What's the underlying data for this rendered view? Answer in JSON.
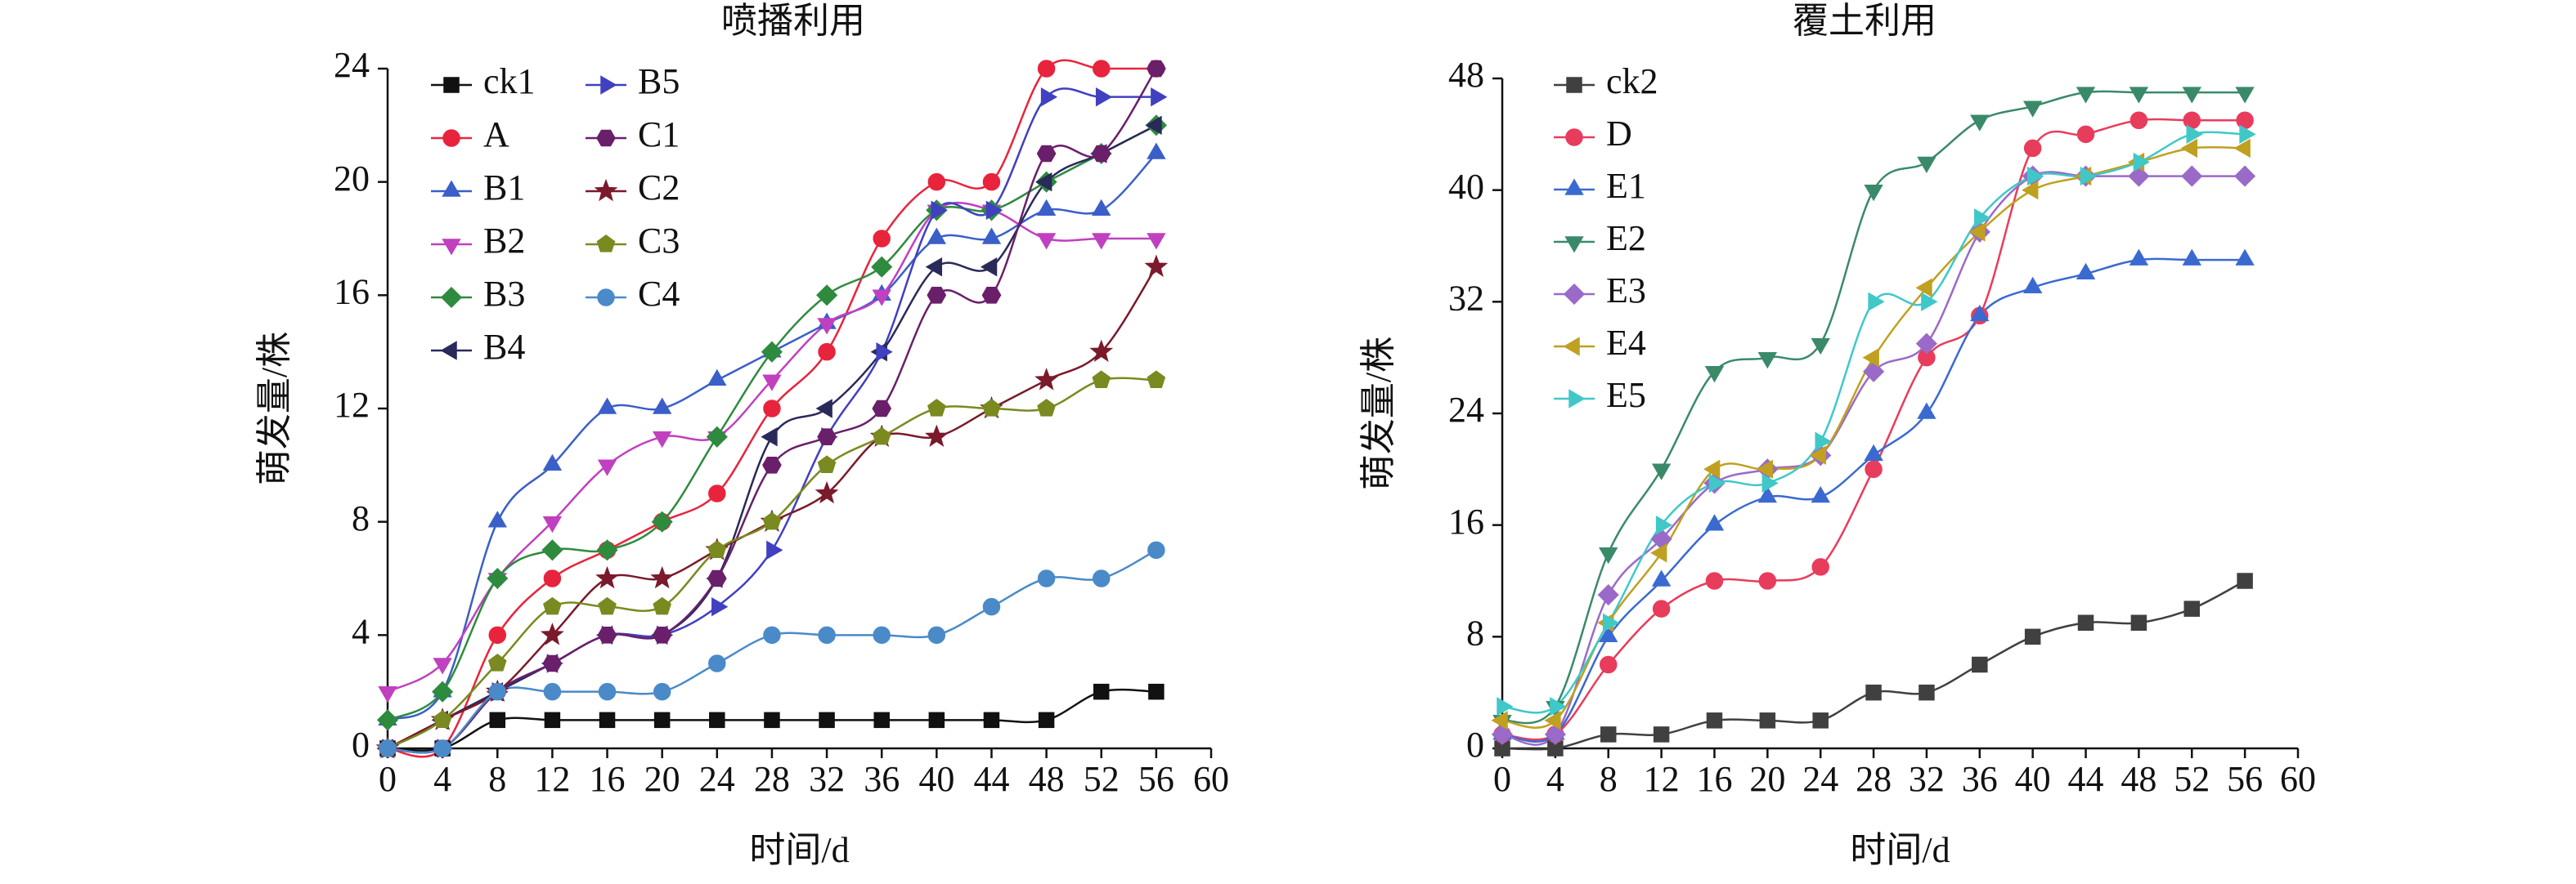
{
  "chart_data": [
    {
      "type": "line",
      "title": "喷播利用",
      "xlabel": "时间/d",
      "ylabel": "萌发量/株",
      "x": [
        0,
        4,
        8,
        12,
        16,
        20,
        24,
        28,
        32,
        36,
        40,
        44,
        48,
        52,
        56
      ],
      "xlim": [
        0,
        60
      ],
      "xticks": [
        0,
        4,
        8,
        12,
        16,
        20,
        24,
        28,
        32,
        36,
        40,
        44,
        48,
        52,
        56,
        60
      ],
      "ylim": [
        0,
        24
      ],
      "yticks": [
        0,
        4,
        8,
        12,
        16,
        20,
        24
      ],
      "legend": "upper left",
      "legend_columns": 2,
      "series": [
        {
          "name": "ck1",
          "color": "#111111",
          "marker": "square",
          "values": [
            0,
            0,
            1,
            1,
            1,
            1,
            1,
            1,
            1,
            1,
            1,
            1,
            1,
            2,
            2
          ]
        },
        {
          "name": "A",
          "color": "#e8243c",
          "marker": "circle",
          "values": [
            0,
            0,
            4,
            6,
            7,
            8,
            9,
            12,
            14,
            18,
            20,
            20,
            24,
            24,
            24
          ]
        },
        {
          "name": "B1",
          "color": "#3a5fc8",
          "marker": "triangle-up",
          "values": [
            1,
            2,
            8,
            10,
            12,
            12,
            13,
            14,
            15,
            16,
            18,
            18,
            19,
            19,
            21
          ]
        },
        {
          "name": "B2",
          "color": "#c040c0",
          "marker": "triangle-down",
          "values": [
            2,
            3,
            6,
            8,
            10,
            11,
            11,
            13,
            15,
            16,
            19,
            19,
            18,
            18,
            18
          ]
        },
        {
          "name": "B3",
          "color": "#2e8b3e",
          "marker": "diamond",
          "values": [
            1,
            2,
            6,
            7,
            7,
            8,
            11,
            14,
            16,
            17,
            19,
            19,
            20,
            21,
            22
          ]
        },
        {
          "name": "B4",
          "color": "#2a2a5a",
          "marker": "triangle-left",
          "values": [
            0,
            1,
            2,
            3,
            4,
            4,
            6,
            11,
            12,
            14,
            17,
            17,
            20,
            21,
            22
          ]
        },
        {
          "name": "B5",
          "color": "#4040c0",
          "marker": "triangle-right",
          "values": [
            0,
            0,
            2,
            3,
            4,
            4,
            5,
            7,
            11,
            14,
            19,
            19,
            23,
            23,
            23
          ]
        },
        {
          "name": "C1",
          "color": "#6a1f6a",
          "marker": "hexagon",
          "values": [
            0,
            0,
            2,
            3,
            4,
            4,
            6,
            10,
            11,
            12,
            16,
            16,
            21,
            21,
            24
          ]
        },
        {
          "name": "C2",
          "color": "#7a1a2a",
          "marker": "star",
          "values": [
            0,
            1,
            2,
            4,
            6,
            6,
            7,
            8,
            9,
            11,
            11,
            12,
            13,
            14,
            17
          ]
        },
        {
          "name": "C3",
          "color": "#7a8a20",
          "marker": "pentagon",
          "values": [
            0,
            1,
            3,
            5,
            5,
            5,
            7,
            8,
            10,
            11,
            12,
            12,
            12,
            13,
            13
          ]
        },
        {
          "name": "C4",
          "color": "#4a8ac8",
          "marker": "circle",
          "values": [
            0,
            0,
            2,
            2,
            2,
            2,
            3,
            4,
            4,
            4,
            4,
            5,
            6,
            6,
            7
          ]
        }
      ]
    },
    {
      "type": "line",
      "title": "覆土利用",
      "xlabel": "时间/d",
      "ylabel": "萌发量/株",
      "x": [
        0,
        4,
        8,
        12,
        16,
        20,
        24,
        28,
        32,
        36,
        40,
        44,
        48,
        52,
        56
      ],
      "xlim": [
        0,
        60
      ],
      "xticks": [
        0,
        4,
        8,
        12,
        16,
        20,
        24,
        28,
        32,
        36,
        40,
        44,
        48,
        52,
        56,
        60
      ],
      "ylim": [
        0,
        48
      ],
      "yticks": [
        0,
        8,
        16,
        24,
        32,
        40,
        48
      ],
      "legend": "upper left",
      "legend_columns": 1,
      "series": [
        {
          "name": "ck2",
          "color": "#404040",
          "marker": "square",
          "values": [
            0,
            0,
            1,
            1,
            2,
            2,
            2,
            4,
            4,
            6,
            8,
            9,
            9,
            10,
            12
          ]
        },
        {
          "name": "D",
          "color": "#e83c5c",
          "marker": "circle",
          "values": [
            1,
            1,
            6,
            10,
            12,
            12,
            13,
            20,
            28,
            31,
            43,
            44,
            45,
            45,
            45
          ]
        },
        {
          "name": "E1",
          "color": "#3a6ad0",
          "marker": "triangle-up",
          "values": [
            1,
            1,
            8,
            12,
            16,
            18,
            18,
            21,
            24,
            31,
            33,
            34,
            35,
            35,
            35
          ]
        },
        {
          "name": "E2",
          "color": "#3a8a6a",
          "marker": "triangle-down",
          "values": [
            2,
            3,
            14,
            20,
            27,
            28,
            29,
            40,
            42,
            45,
            46,
            47,
            47,
            47,
            47
          ]
        },
        {
          "name": "E3",
          "color": "#9a6ac8",
          "marker": "diamond",
          "values": [
            1,
            1,
            11,
            15,
            19,
            20,
            21,
            27,
            29,
            37,
            41,
            41,
            41,
            41,
            41
          ]
        },
        {
          "name": "E4",
          "color": "#c0a020",
          "marker": "triangle-left",
          "values": [
            2,
            2,
            9,
            14,
            20,
            20,
            21,
            28,
            33,
            37,
            40,
            41,
            42,
            43,
            43
          ]
        },
        {
          "name": "E5",
          "color": "#40c8c8",
          "marker": "triangle-right",
          "values": [
            3,
            3,
            9,
            16,
            19,
            19,
            22,
            32,
            32,
            38,
            41,
            41,
            42,
            44,
            44
          ]
        }
      ]
    }
  ]
}
